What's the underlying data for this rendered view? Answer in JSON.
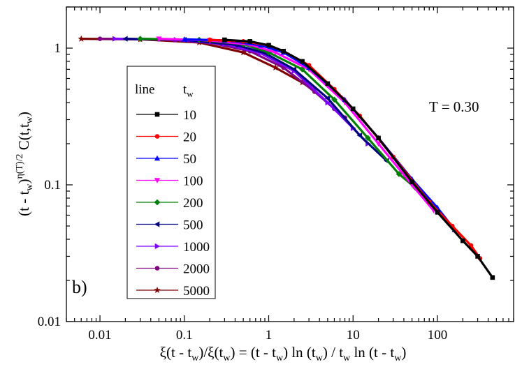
{
  "panel_label": "b)",
  "chart_data": {
    "type": "scatter",
    "title": "",
    "x_scale": "log",
    "y_scale": "log",
    "xlim": [
      0.004,
      800
    ],
    "ylim": [
      0.01,
      2
    ],
    "grid": false,
    "x_ticks": [
      {
        "value": 0.01,
        "label": "0.01"
      },
      {
        "value": 0.1,
        "label": "0.1"
      },
      {
        "value": 1,
        "label": "1"
      },
      {
        "value": 10,
        "label": "10"
      },
      {
        "value": 100,
        "label": "100"
      }
    ],
    "y_ticks": [
      {
        "value": 0.01,
        "label": "0.01"
      },
      {
        "value": 0.1,
        "label": "0.1"
      },
      {
        "value": 1,
        "label": "1"
      }
    ],
    "xlabel": "ξ(t - t_w)/ξ(t_w) = (t - t_w) ln (t_w) / t_w ln (t - t_w)",
    "ylabel": "(t - t_w)^η(T)/2 C(t,t_w)",
    "annotation": "T = 0.30",
    "legend": {
      "placement": "center-left",
      "header_left": "line",
      "header_right": "t_w"
    },
    "series": [
      {
        "name": "10",
        "color": "#000000",
        "marker": "square",
        "x": [
          0.3,
          0.6,
          1.0,
          1.5,
          2.5,
          5,
          10,
          20,
          50,
          100,
          200,
          300,
          450
        ],
        "y": [
          1.15,
          1.12,
          1.05,
          0.95,
          0.8,
          0.55,
          0.36,
          0.22,
          0.105,
          0.063,
          0.039,
          0.03,
          0.021
        ]
      },
      {
        "name": "20",
        "color": "#ff0000",
        "marker": "circle",
        "x": [
          0.2,
          0.5,
          1.0,
          1.5,
          3,
          6,
          12,
          30,
          80,
          150,
          250,
          320
        ],
        "y": [
          1.15,
          1.12,
          1.05,
          0.95,
          0.75,
          0.5,
          0.32,
          0.16,
          0.075,
          0.05,
          0.036,
          0.029
        ]
      },
      {
        "name": "50",
        "color": "#0000ff",
        "marker": "triangle-up",
        "x": [
          0.1,
          0.3,
          0.8,
          1.5,
          3,
          8,
          20,
          50,
          100,
          160
        ],
        "y": [
          1.16,
          1.14,
          1.05,
          0.93,
          0.72,
          0.42,
          0.22,
          0.11,
          0.068,
          0.047
        ]
      },
      {
        "name": "100",
        "color": "#ff00ff",
        "marker": "triangle-down",
        "x": [
          0.05,
          0.2,
          0.6,
          1.2,
          3,
          8,
          20,
          50,
          90
        ],
        "y": [
          1.17,
          1.14,
          1.06,
          0.93,
          0.7,
          0.4,
          0.2,
          0.1,
          0.065
        ]
      },
      {
        "name": "200",
        "color": "#008000",
        "marker": "diamond",
        "x": [
          0.03,
          0.15,
          0.5,
          1.0,
          2.5,
          6,
          15,
          35,
          55
        ],
        "y": [
          1.17,
          1.15,
          1.07,
          0.93,
          0.7,
          0.42,
          0.22,
          0.12,
          0.095
        ]
      },
      {
        "name": "500",
        "color": "#000080",
        "marker": "triangle-left",
        "x": [
          0.02,
          0.1,
          0.4,
          0.9,
          2,
          5,
          12,
          25
        ],
        "y": [
          1.17,
          1.15,
          1.06,
          0.92,
          0.7,
          0.43,
          0.23,
          0.15
        ]
      },
      {
        "name": "1000",
        "color": "#8000ff",
        "marker": "triangle-right",
        "x": [
          0.015,
          0.08,
          0.3,
          0.8,
          2,
          5,
          10,
          15
        ],
        "y": [
          1.17,
          1.15,
          1.07,
          0.92,
          0.68,
          0.4,
          0.26,
          0.2
        ]
      },
      {
        "name": "2000",
        "color": "#800080",
        "marker": "circle",
        "x": [
          0.01,
          0.05,
          0.2,
          0.6,
          1.5,
          3.5,
          6,
          8
        ],
        "y": [
          1.17,
          1.16,
          1.1,
          0.95,
          0.72,
          0.48,
          0.36,
          0.31
        ]
      },
      {
        "name": "5000",
        "color": "#800000",
        "marker": "star",
        "x": [
          0.006,
          0.03,
          0.15,
          0.5,
          1.2,
          2.5,
          3.5
        ],
        "y": [
          1.17,
          1.16,
          1.1,
          0.93,
          0.72,
          0.56,
          0.5
        ]
      }
    ]
  }
}
